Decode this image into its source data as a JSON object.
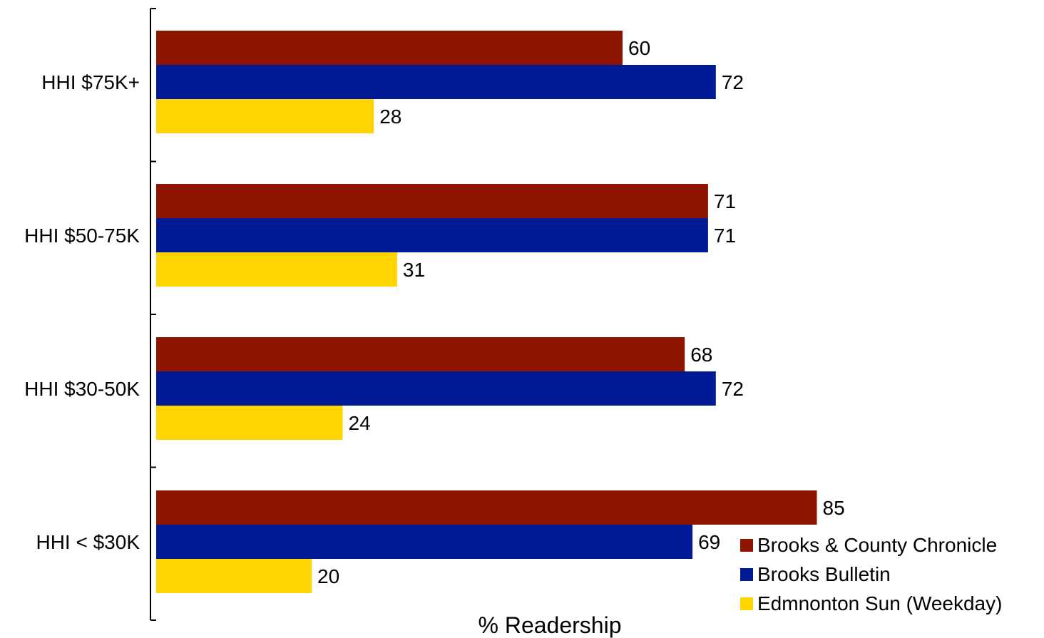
{
  "chart_data": {
    "type": "bar",
    "orientation": "horizontal",
    "categories": [
      "HHI $75K+",
      "HHI $50-75K",
      "HHI $30-50K",
      "HHI < $30K"
    ],
    "series": [
      {
        "name": "Brooks & County Chronicle",
        "color": "#8e1500",
        "values": [
          60,
          71,
          68,
          85
        ]
      },
      {
        "name": "Brooks Bulletin",
        "color": "#001a96",
        "values": [
          72,
          71,
          72,
          69
        ]
      },
      {
        "name": "Edmnonton Sun (Weekday)",
        "color": "#ffd400",
        "values": [
          28,
          31,
          24,
          20
        ]
      }
    ],
    "xlabel": "% Readership",
    "xlim": [
      0,
      100
    ],
    "grid": false,
    "legend_position": "bottom-right"
  }
}
